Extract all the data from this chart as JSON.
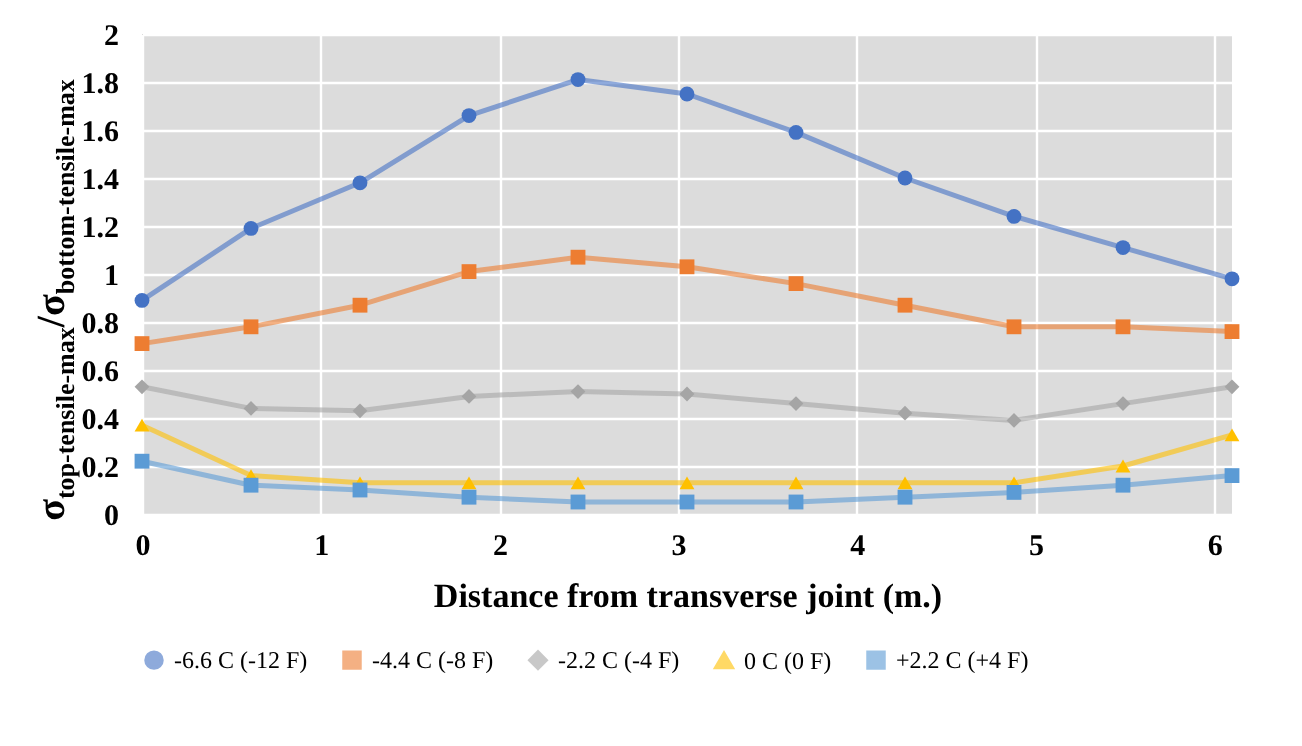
{
  "chart_data": {
    "type": "line",
    "xlabel": "Distance from transverse joint (m.)",
    "ylabel": "σ$_{top-tensile-max}$/σ$_{bottom-tensile-max}$",
    "x": [
      0,
      0.61,
      1.22,
      1.83,
      2.44,
      3.05,
      3.66,
      4.27,
      4.88,
      5.49,
      6.1
    ],
    "series": [
      {
        "name": "-6.6 C (-12 F)",
        "color": "#4472c4",
        "marker": "circle",
        "values": [
          0.89,
          1.19,
          1.38,
          1.66,
          1.81,
          1.75,
          1.59,
          1.4,
          1.24,
          1.11,
          0.98
        ]
      },
      {
        "name": "-4.4 C (-8 F)",
        "color": "#ed7d31",
        "marker": "square",
        "values": [
          0.71,
          0.78,
          0.87,
          1.01,
          1.07,
          1.03,
          0.96,
          0.87,
          0.78,
          0.78,
          0.76
        ]
      },
      {
        "name": "-2.2 C (-4 F)",
        "color": "#a5a5a5",
        "marker": "diamond",
        "values": [
          0.53,
          0.44,
          0.43,
          0.49,
          0.51,
          0.5,
          0.46,
          0.42,
          0.39,
          0.46,
          0.53
        ]
      },
      {
        "name": "0 C (0 F)",
        "color": "#ffc000",
        "marker": "triangle",
        "values": [
          0.37,
          0.16,
          0.13,
          0.13,
          0.13,
          0.13,
          0.13,
          0.13,
          0.13,
          0.2,
          0.33
        ]
      },
      {
        "name": "+2.2 C (+4 F)",
        "color": "#5b9bd5",
        "marker": "square",
        "values": [
          0.22,
          0.12,
          0.1,
          0.07,
          0.05,
          0.05,
          0.05,
          0.07,
          0.09,
          0.12,
          0.16
        ]
      }
    ],
    "xlim": [
      0,
      6.1
    ],
    "xticks": [
      0,
      1,
      2,
      3,
      4,
      5,
      6
    ],
    "ylim": [
      0,
      2
    ],
    "yticks": [
      0,
      0.2,
      0.4,
      0.6,
      0.8,
      1,
      1.2,
      1.4,
      1.6,
      1.8,
      2
    ],
    "grid": true,
    "legend": "bottom",
    "line_style": "solid"
  }
}
